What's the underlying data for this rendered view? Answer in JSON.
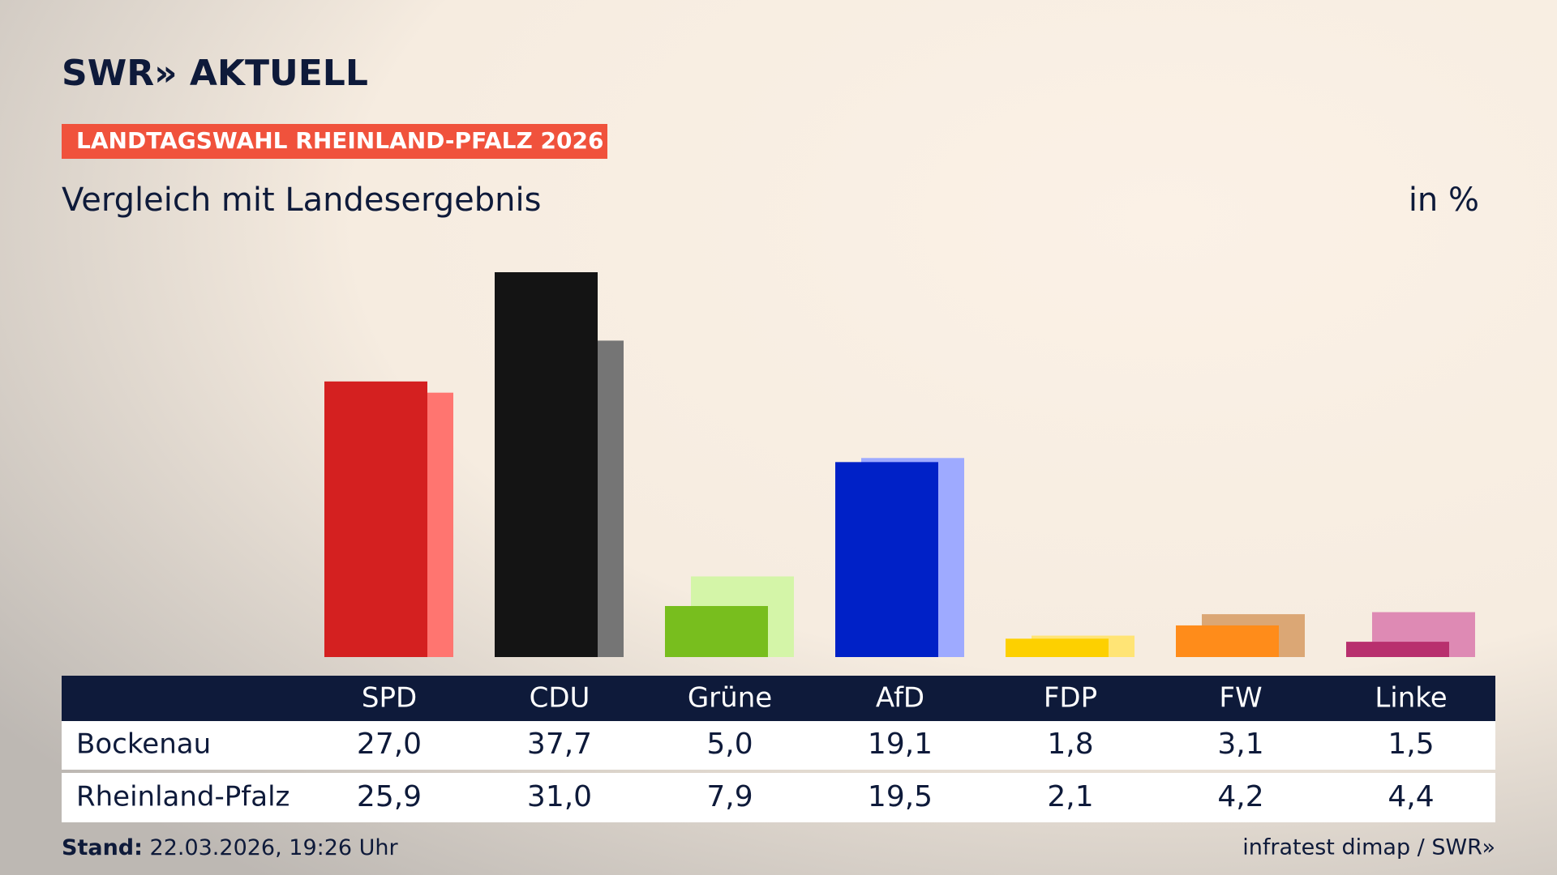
{
  "brand": "SWR» AKTUELL",
  "badge": "LANDTAGSWAHL RHEINLAND-PFALZ 2026",
  "footer": {
    "label": "Stand:",
    "timestamp": "22.03.2026, 19:26 Uhr",
    "source": "infratest dimap / SWR»"
  },
  "chart_data": {
    "type": "bar",
    "title": "Vergleich mit Landesergebnis",
    "unit": "in %",
    "categories": [
      "SPD",
      "CDU",
      "Grüne",
      "AfD",
      "FDP",
      "FW",
      "Linke"
    ],
    "series": [
      {
        "name": "Bockenau",
        "colors": [
          "#d42020",
          "#141414",
          "#78be1e",
          "#0021c7",
          "#fdd000",
          "#ff8c1a",
          "#b8306e"
        ],
        "values": [
          27.0,
          37.7,
          5.0,
          19.1,
          1.8,
          3.1,
          1.5
        ],
        "value_labels": [
          "27,0",
          "37,7",
          "5,0",
          "19,1",
          "1,8",
          "3,1",
          "1,5"
        ]
      },
      {
        "name": "Rheinland-Pfalz",
        "colors": [
          "#ff7570",
          "#757575",
          "#d4f5a8",
          "#9eaaff",
          "#ffe475",
          "#dba775",
          "#de8ab4"
        ],
        "values": [
          25.9,
          31.0,
          7.9,
          19.5,
          2.1,
          4.2,
          4.4
        ],
        "value_labels": [
          "25,9",
          "31,0",
          "7,9",
          "19,5",
          "2,1",
          "4,2",
          "4,4"
        ]
      }
    ]
  }
}
